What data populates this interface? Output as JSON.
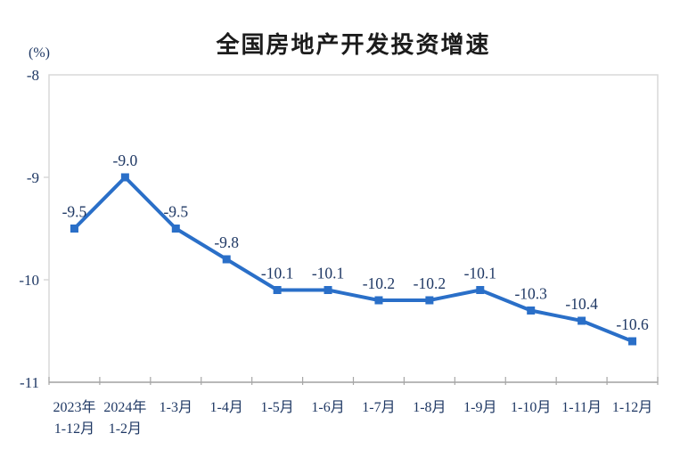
{
  "page": {
    "background": "#ffffff"
  },
  "chart_data": {
    "type": "line",
    "title": "全国房地产开发投资增速",
    "unit_label": "(%)",
    "categories": [
      [
        "2023年",
        "1-12月"
      ],
      [
        "2024年",
        "1-2月"
      ],
      [
        "1-3月"
      ],
      [
        "1-4月"
      ],
      [
        "1-5月"
      ],
      [
        "1-6月"
      ],
      [
        "1-7月"
      ],
      [
        "1-8月"
      ],
      [
        "1-9月"
      ],
      [
        "1-10月"
      ],
      [
        "1-11月"
      ],
      [
        "1-12月"
      ]
    ],
    "series": [
      {
        "name": "全国房地产开发投资增速",
        "values": [
          -9.5,
          -9.0,
          -9.5,
          -9.8,
          -10.1,
          -10.1,
          -10.2,
          -10.2,
          -10.1,
          -10.3,
          -10.4,
          -10.6
        ],
        "labels": [
          "-9.5",
          "-9.0",
          "-9.5",
          "-9.8",
          "-10.1",
          "-10.1",
          "-10.2",
          "-10.2",
          "-10.1",
          "-10.3",
          "-10.4",
          "-10.6"
        ]
      }
    ],
    "xlabel": "",
    "ylabel": "(%)",
    "ylim": [
      -11,
      -8
    ],
    "y_ticks": [
      -8,
      -9,
      -10,
      -11
    ],
    "grid": false,
    "legend_position": "none",
    "colors": {
      "line": "#2a6fc8",
      "marker": "#2a6fc8",
      "text": "#1f3864",
      "title": "#1c1c1c",
      "plot_border": "#d6d6d6",
      "bottom_axis": "#a6a6a6"
    }
  }
}
